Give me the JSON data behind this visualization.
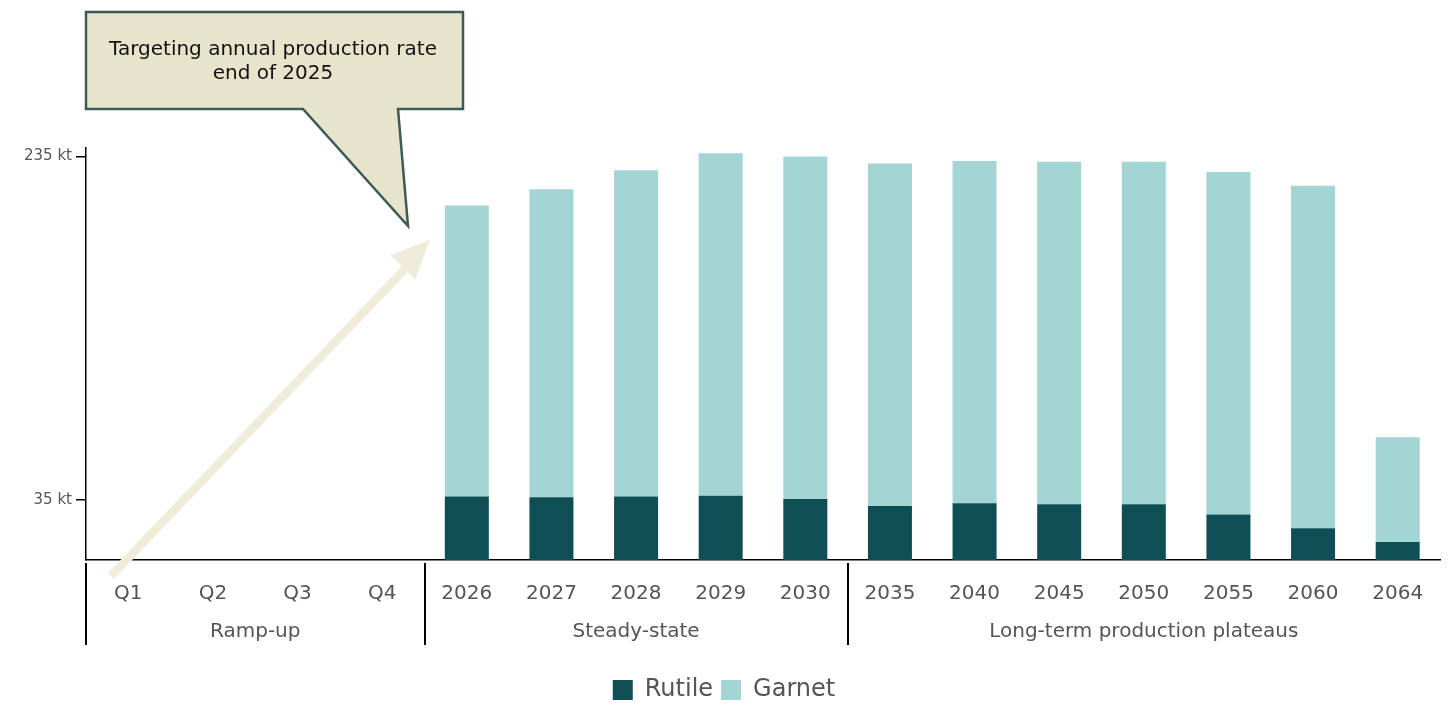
{
  "chart_data": {
    "type": "bar",
    "stacked": true,
    "categories": [
      "Q1",
      "Q2",
      "Q3",
      "Q4",
      "2026",
      "2027",
      "2028",
      "2029",
      "2030",
      "2035",
      "2040",
      "2045",
      "2050",
      "2055",
      "2060",
      "2064"
    ],
    "series": [
      {
        "name": "Rutile",
        "color": "#0d4f55",
        "values": [
          null,
          null,
          null,
          null,
          37,
          36.5,
          37,
          37.5,
          35.5,
          31.5,
          33,
          32.5,
          32.5,
          26.5,
          18.5,
          10.5
        ]
      },
      {
        "name": "Garnet",
        "color": "#a2d5d3",
        "values": [
          null,
          null,
          null,
          null,
          169.5,
          179.5,
          190,
          199.5,
          199.5,
          199.5,
          199.5,
          199.5,
          199.5,
          199.5,
          199.5,
          61
        ]
      }
    ],
    "ylim": [
      0,
      240
    ],
    "yticks": [
      {
        "value": 35,
        "label": "35 kt"
      },
      {
        "value": 235,
        "label": "235 kt"
      }
    ],
    "grid": false,
    "legend": "bottom",
    "annotations": [
      "Targeting annual production rate end of 2025",
      "Ramp-up",
      "Steady-state",
      "Long-term production plateaus"
    ]
  }
}
